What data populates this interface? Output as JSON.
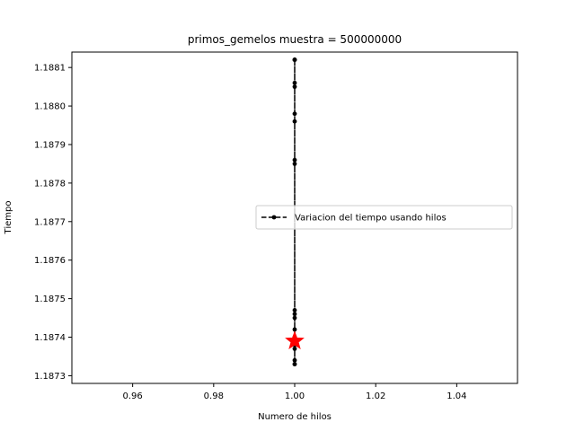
{
  "chart_data": {
    "type": "line",
    "title": "primos_gemelos muestra = 500000000",
    "xlabel": "Numero de hilos",
    "ylabel": "Tiempo",
    "xlim": [
      0.945,
      1.055
    ],
    "ylim": [
      1.18728,
      1.18814
    ],
    "xticks": [
      0.96,
      0.98,
      1.0,
      1.02,
      1.04
    ],
    "xtick_labels": [
      "0.96",
      "0.98",
      "1.00",
      "1.02",
      "1.04"
    ],
    "yticks": [
      1.1873,
      1.1874,
      1.1875,
      1.1876,
      1.1877,
      1.1878,
      1.1879,
      1.188,
      1.1881
    ],
    "ytick_labels": [
      "1.1873",
      "1.1874",
      "1.1875",
      "1.1876",
      "1.1877",
      "1.1878",
      "1.1879",
      "1.1880",
      "1.1881"
    ],
    "grid": false,
    "legend_position": "center-right",
    "series": [
      {
        "name": "Variacion del tiempo usando hilos",
        "style": "dashed-with-dot-markers",
        "color": "#000000",
        "x": [
          1,
          1,
          1,
          1,
          1,
          1,
          1,
          1,
          1,
          1,
          1,
          1,
          1,
          1,
          1,
          1,
          1,
          1,
          1,
          1
        ],
        "y": [
          1.18812,
          1.18806,
          1.18805,
          1.18798,
          1.18796,
          1.18786,
          1.18785,
          1.18747,
          1.18746,
          1.18745,
          1.18742,
          1.1874,
          1.18739,
          1.18738,
          1.18737,
          1.18734,
          1.18733,
          1.18812,
          1.18733,
          1.18812
        ]
      }
    ],
    "highlight": {
      "marker": "star",
      "color": "#ff0000",
      "x": 1.0,
      "y": 1.18739
    }
  }
}
